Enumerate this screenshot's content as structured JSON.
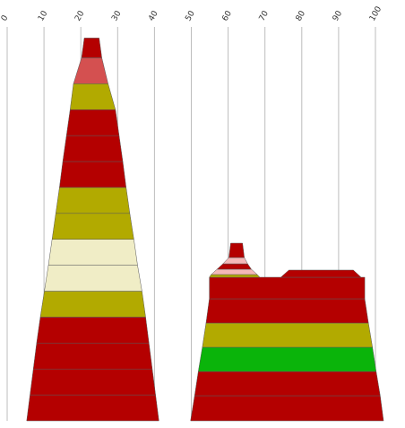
{
  "chart_data": {
    "type": "area",
    "x_axis": {
      "range": [
        0,
        105
      ],
      "ticks": [
        0,
        10,
        20,
        30,
        40,
        50,
        60,
        70,
        80,
        90,
        100
      ],
      "tick_labels": [
        "0",
        "10",
        "20",
        "30",
        "40",
        "50",
        "60",
        "70",
        "80",
        "90",
        "100"
      ],
      "position": "top",
      "label_rotation": -60
    },
    "grid": true,
    "legend": "none",
    "colors": {
      "dark_red": "#b40000",
      "light_red": "#d45050",
      "olive": "#b2aa00",
      "cream": "#f0edc6",
      "pink": "#f4b8b8",
      "green": "#0ab40a"
    },
    "shapes": [
      {
        "name": "left",
        "bands": [
          {
            "color": "dark_red",
            "x_range": [
              5.3,
              41.2
            ]
          },
          {
            "color": "dark_red",
            "x_range": [
              6.2,
              40.3
            ]
          },
          {
            "color": "dark_red",
            "x_range": [
              7.1,
              39.4
            ]
          },
          {
            "color": "dark_red",
            "x_range": [
              8.0,
              38.5
            ]
          },
          {
            "color": "olive",
            "x_range": [
              9.0,
              37.6
            ]
          },
          {
            "color": "cream",
            "x_range": [
              10.1,
              36.6
            ]
          },
          {
            "color": "cream",
            "x_range": [
              11.2,
              35.4
            ]
          },
          {
            "color": "olive",
            "x_range": [
              12.2,
              34.4
            ]
          },
          {
            "color": "olive",
            "x_range": [
              13.2,
              33.3
            ]
          },
          {
            "color": "dark_red",
            "x_range": [
              14.2,
              32.3
            ]
          },
          {
            "color": "dark_red",
            "x_range": [
              15.1,
              31.4
            ]
          },
          {
            "color": "dark_red",
            "x_range": [
              16.1,
              30.4
            ]
          },
          {
            "color": "olive",
            "x_range": [
              17.1,
              29.4
            ]
          },
          {
            "color": "light_red",
            "x_range": [
              18.0,
              27.4
            ]
          },
          {
            "color": "dark_red",
            "x_range": [
              20.2,
              25.7
            ]
          }
        ]
      },
      {
        "name": "right",
        "bands": [
          {
            "color": "dark_red",
            "x_range": [
              49.8,
              102.2
            ]
          },
          {
            "color": "dark_red",
            "x_range": [
              50.9,
              101.3
            ]
          },
          {
            "color": "green",
            "x_range": [
              51.9,
              100.2
            ]
          },
          {
            "color": "olive",
            "x_range": [
              53.0,
              99.2
            ]
          },
          {
            "color": "dark_red",
            "x_range": [
              54.0,
              98.1
            ]
          },
          {
            "color": "dark_red",
            "x_range": [
              54.9,
              97.1
            ]
          }
        ],
        "peaks": [
          {
            "color": "olive",
            "x_range": [
              54.9,
              68.6
            ]
          },
          {
            "color": "pink",
            "x_range": [
              55.4,
              67.9
            ]
          },
          {
            "color": "dark_red",
            "x_range": [
              57.0,
              66.3
            ]
          },
          {
            "color": "pink",
            "x_range": [
              58.6,
              65.3
            ]
          },
          {
            "color": "dark_red",
            "x_range": [
              60.2,
              64.4
            ]
          }
        ],
        "ridge": {
          "color": "dark_red",
          "x_range": [
            74.3,
            96.1
          ],
          "top_x_range": [
            76.5,
            94.0
          ]
        }
      }
    ]
  }
}
